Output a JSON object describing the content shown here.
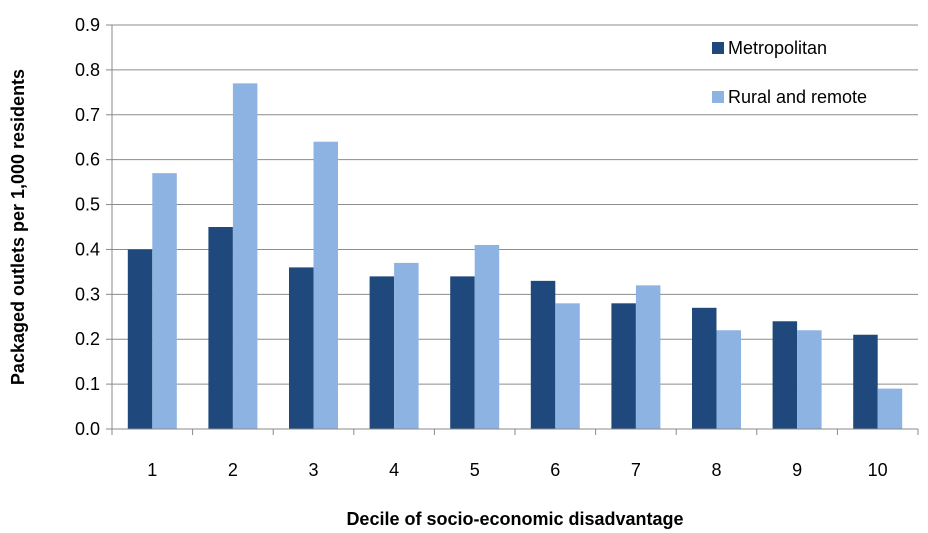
{
  "chart_data": {
    "type": "bar",
    "title": "",
    "xlabel": "Decile of socio-economic disadvantage",
    "ylabel": "Packaged outlets per 1,000 residents",
    "categories": [
      "1",
      "2",
      "3",
      "4",
      "5",
      "6",
      "7",
      "8",
      "9",
      "10"
    ],
    "series": [
      {
        "name": "Metropolitan",
        "color": "#1f497d",
        "values": [
          0.4,
          0.45,
          0.36,
          0.34,
          0.34,
          0.33,
          0.28,
          0.27,
          0.24,
          0.21
        ]
      },
      {
        "name": "Rural and remote",
        "color": "#8db3e2",
        "values": [
          0.57,
          0.77,
          0.64,
          0.37,
          0.41,
          0.28,
          0.32,
          0.22,
          0.22,
          0.09
        ]
      }
    ],
    "ylim": [
      0,
      0.9
    ],
    "yticks": [
      "0.0",
      "0.1",
      "0.2",
      "0.3",
      "0.4",
      "0.5",
      "0.6",
      "0.7",
      "0.8",
      "0.9"
    ],
    "grid": true,
    "legend_position": "top-right"
  }
}
